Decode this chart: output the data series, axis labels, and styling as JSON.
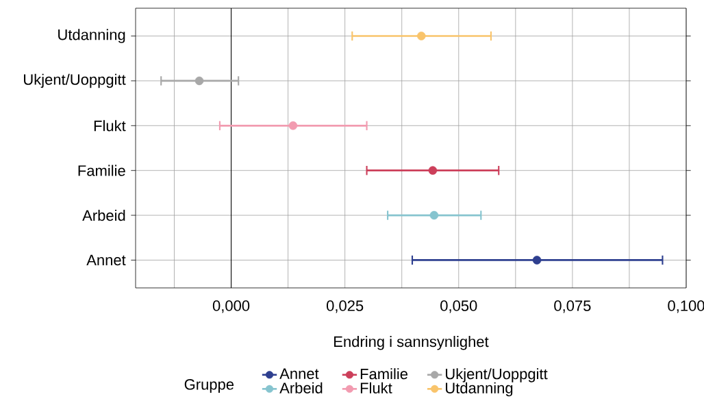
{
  "chart_data": {
    "type": "scatter",
    "orientation": "horizontal",
    "categories": [
      "Utdanning",
      "Ukjent/Uoppgitt",
      "Flukt",
      "Familie",
      "Arbeid",
      "Annet"
    ],
    "series": [
      {
        "name": "Annet",
        "color": "#2e3f8f",
        "values": [
          null,
          null,
          null,
          null,
          null,
          0.0672
        ],
        "errors": [
          null,
          null,
          null,
          null,
          null,
          [
            0.0398,
            0.0948
          ]
        ]
      },
      {
        "name": "Arbeid",
        "color": "#86c4cf",
        "values": [
          null,
          null,
          null,
          null,
          0.0446,
          null
        ],
        "errors": [
          null,
          null,
          null,
          null,
          [
            0.0344,
            0.0549
          ],
          null
        ]
      },
      {
        "name": "Familie",
        "color": "#cc3f5a",
        "values": [
          null,
          null,
          null,
          0.0443,
          null,
          null
        ],
        "errors": [
          null,
          null,
          null,
          [
            0.0298,
            0.0588
          ],
          null,
          null
        ]
      },
      {
        "name": "Flukt",
        "color": "#f29bb0",
        "values": [
          null,
          null,
          0.0136,
          null,
          null,
          null
        ],
        "errors": [
          null,
          null,
          [
            -0.0025,
            0.0298
          ],
          null,
          null,
          null
        ]
      },
      {
        "name": "Ukjent/Uoppgitt",
        "color": "#a8a8a8",
        "values": [
          null,
          -0.007,
          null,
          null,
          null,
          null
        ],
        "errors": [
          null,
          [
            -0.0154,
            0.0016
          ],
          null,
          null,
          null,
          null
        ]
      },
      {
        "name": "Utdanning",
        "color": "#f9c46b",
        "values": [
          0.0418,
          null,
          null,
          null,
          null,
          null
        ],
        "errors": [
          [
            0.0266,
            0.0571
          ],
          null,
          null,
          null,
          null,
          null
        ]
      }
    ],
    "xlim": [
      -0.021,
      0.1
    ],
    "xticks": [
      {
        "value": -0.0125,
        "label": null
      },
      {
        "value": 0,
        "label": "0,000"
      },
      {
        "value": 0.0125,
        "label": null
      },
      {
        "value": 0.025,
        "label": "0,025"
      },
      {
        "value": 0.0375,
        "label": null
      },
      {
        "value": 0.05,
        "label": "0,050"
      },
      {
        "value": 0.0625,
        "label": null
      },
      {
        "value": 0.075,
        "label": "0,075"
      },
      {
        "value": 0.0875,
        "label": null
      },
      {
        "value": 0.1,
        "label": "0,100"
      }
    ],
    "xlabel": "Endring i sannsynlighet",
    "legend": "bottom",
    "legend_title": "Gruppe",
    "grid": true,
    "marker": "circle",
    "ref_lines": [
      {
        "axis": "x",
        "value": 0,
        "color": "#000000"
      }
    ]
  }
}
